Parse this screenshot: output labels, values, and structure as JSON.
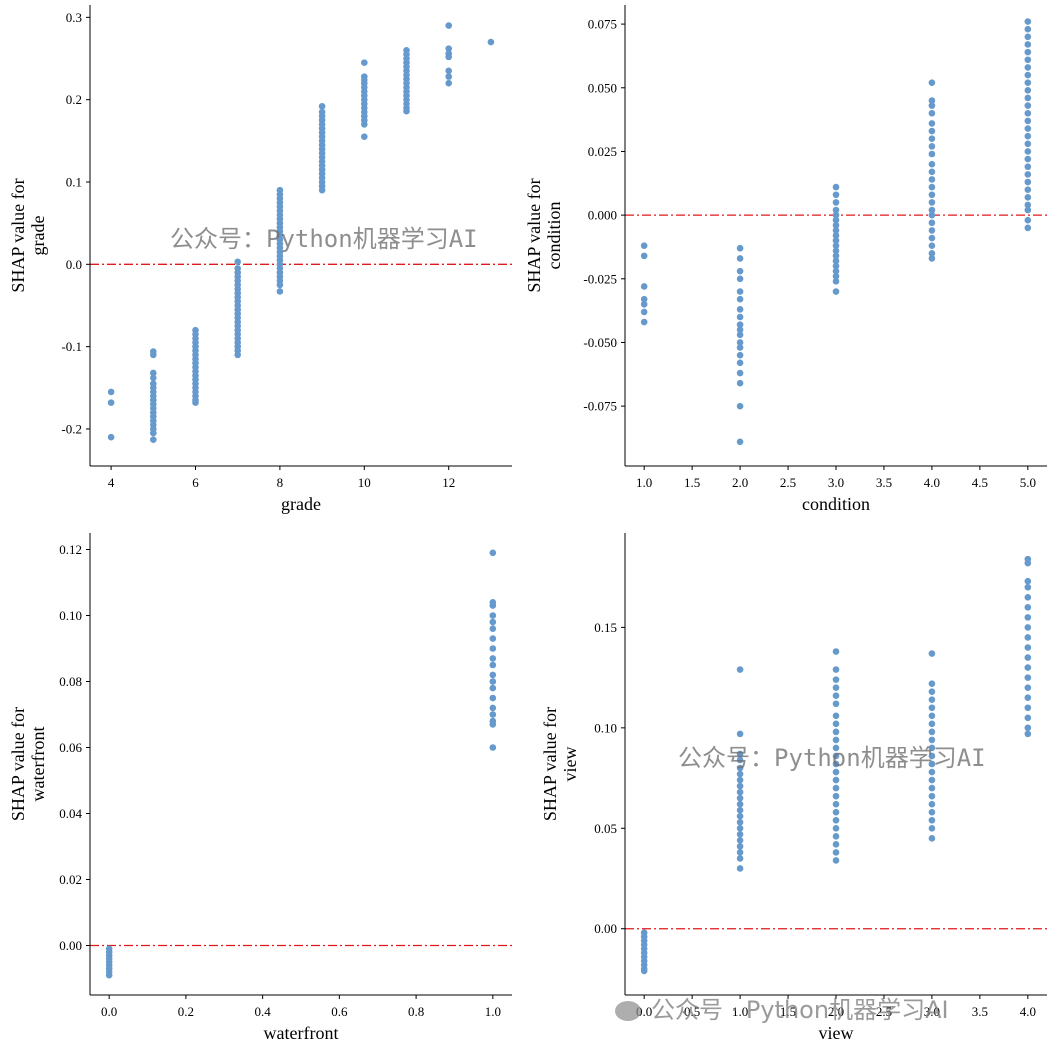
{
  "figure": {
    "watermark_text": "公众号：Python机器学习AI",
    "watermark_text_footer": "公众号 · Python机器学习AI"
  },
  "colors": {
    "point": "#6699CC",
    "zero_line": "#E0191C",
    "axis": "#000000"
  },
  "chart_data": [
    {
      "type": "scatter",
      "id": "grade",
      "xlabel": "grade",
      "ylabel_lines": [
        "SHAP value for",
        "grade"
      ],
      "xlim": [
        3.5,
        13.5
      ],
      "ylim": [
        -0.245,
        0.315
      ],
      "xticks": [
        4,
        6,
        8,
        10,
        12
      ],
      "xtick_labels": [
        "4",
        "6",
        "8",
        "10",
        "12"
      ],
      "yticks": [
        -0.2,
        -0.1,
        0.0,
        0.1,
        0.2,
        0.3
      ],
      "ytick_labels": [
        "-0.2",
        "-0.1",
        "0.0",
        "0.1",
        "0.2",
        "0.3"
      ],
      "zero_line": 0.0,
      "points": [
        {
          "x": 4,
          "ys": [
            -0.155,
            -0.168,
            -0.21
          ]
        },
        {
          "x": 5,
          "ys": [
            -0.106,
            -0.11,
            -0.132,
            -0.138,
            -0.145,
            -0.15,
            -0.155,
            -0.16,
            -0.165,
            -0.17,
            -0.175,
            -0.18,
            -0.185,
            -0.19,
            -0.195,
            -0.2,
            -0.205,
            -0.213
          ]
        },
        {
          "x": 6,
          "ys": [
            -0.08,
            -0.085,
            -0.09,
            -0.095,
            -0.1,
            -0.105,
            -0.11,
            -0.115,
            -0.12,
            -0.125,
            -0.13,
            -0.135,
            -0.14,
            -0.145,
            -0.15,
            -0.155,
            -0.16,
            -0.165,
            -0.168
          ]
        },
        {
          "x": 7,
          "ys": [
            0.003,
            -0.005,
            -0.01,
            -0.015,
            -0.02,
            -0.025,
            -0.03,
            -0.035,
            -0.04,
            -0.045,
            -0.05,
            -0.055,
            -0.06,
            -0.065,
            -0.07,
            -0.075,
            -0.08,
            -0.085,
            -0.09,
            -0.095,
            -0.1,
            -0.105,
            -0.11
          ]
        },
        {
          "x": 8,
          "ys": [
            0.09,
            0.085,
            0.08,
            0.075,
            0.07,
            0.065,
            0.06,
            0.055,
            0.05,
            0.045,
            0.04,
            0.035,
            0.03,
            0.025,
            0.02,
            0.015,
            0.01,
            0.005,
            0.0,
            -0.005,
            -0.01,
            -0.015,
            -0.02,
            -0.025,
            -0.033
          ]
        },
        {
          "x": 9,
          "ys": [
            0.192,
            0.185,
            0.18,
            0.175,
            0.17,
            0.165,
            0.16,
            0.155,
            0.15,
            0.145,
            0.14,
            0.135,
            0.13,
            0.125,
            0.12,
            0.115,
            0.11,
            0.105,
            0.1,
            0.095,
            0.09
          ]
        },
        {
          "x": 10,
          "ys": [
            0.245,
            0.228,
            0.224,
            0.22,
            0.215,
            0.21,
            0.205,
            0.2,
            0.195,
            0.19,
            0.185,
            0.18,
            0.175,
            0.17,
            0.155
          ]
        },
        {
          "x": 11,
          "ys": [
            0.26,
            0.255,
            0.25,
            0.245,
            0.24,
            0.235,
            0.23,
            0.225,
            0.22,
            0.215,
            0.21,
            0.205,
            0.2,
            0.195,
            0.19,
            0.186
          ]
        },
        {
          "x": 12,
          "ys": [
            0.29,
            0.262,
            0.256,
            0.252,
            0.235,
            0.228,
            0.22
          ]
        },
        {
          "x": 13,
          "ys": [
            0.27
          ]
        }
      ]
    },
    {
      "type": "scatter",
      "id": "condition",
      "xlabel": "condition",
      "ylabel_lines": [
        "SHAP value for",
        "condition"
      ],
      "xlim": [
        0.8,
        5.2
      ],
      "ylim": [
        -0.0985,
        0.0825
      ],
      "xticks": [
        1.0,
        1.5,
        2.0,
        2.5,
        3.0,
        3.5,
        4.0,
        4.5,
        5.0
      ],
      "xtick_labels": [
        "1.0",
        "1.5",
        "2.0",
        "2.5",
        "3.0",
        "3.5",
        "4.0",
        "4.5",
        "5.0"
      ],
      "yticks": [
        -0.075,
        -0.05,
        -0.025,
        0.0,
        0.025,
        0.05,
        0.075
      ],
      "ytick_labels": [
        "-0.075",
        "-0.050",
        "-0.025",
        "0.000",
        "0.025",
        "0.050",
        "0.075"
      ],
      "zero_line": 0.0,
      "points": [
        {
          "x": 1.0,
          "ys": [
            -0.012,
            -0.016,
            -0.028,
            -0.033,
            -0.035,
            -0.038,
            -0.042
          ]
        },
        {
          "x": 2.0,
          "ys": [
            -0.013,
            -0.017,
            -0.022,
            -0.025,
            -0.03,
            -0.033,
            -0.037,
            -0.04,
            -0.043,
            -0.045,
            -0.047,
            -0.05,
            -0.052,
            -0.055,
            -0.058,
            -0.062,
            -0.066,
            -0.075,
            -0.089
          ]
        },
        {
          "x": 3.0,
          "ys": [
            0.011,
            0.008,
            0.005,
            0.002,
            0.0,
            -0.002,
            -0.004,
            -0.006,
            -0.008,
            -0.01,
            -0.012,
            -0.014,
            -0.016,
            -0.018,
            -0.02,
            -0.022,
            -0.024,
            -0.026,
            -0.03
          ]
        },
        {
          "x": 4.0,
          "ys": [
            0.052,
            0.045,
            0.043,
            0.04,
            0.036,
            0.033,
            0.03,
            0.027,
            0.024,
            0.02,
            0.017,
            0.014,
            0.011,
            0.008,
            0.005,
            0.002,
            0.0,
            -0.003,
            -0.006,
            -0.009,
            -0.012,
            -0.015,
            -0.017
          ]
        },
        {
          "x": 5.0,
          "ys": [
            0.076,
            0.073,
            0.07,
            0.067,
            0.064,
            0.061,
            0.058,
            0.055,
            0.052,
            0.049,
            0.046,
            0.043,
            0.04,
            0.037,
            0.034,
            0.031,
            0.028,
            0.025,
            0.022,
            0.019,
            0.016,
            0.013,
            0.01,
            0.007,
            0.004,
            0.002,
            -0.002,
            -0.005
          ]
        }
      ]
    },
    {
      "type": "scatter",
      "id": "waterfront",
      "xlabel": "waterfront",
      "ylabel_lines": [
        "SHAP value for",
        "waterfront"
      ],
      "xlim": [
        -0.05,
        1.05
      ],
      "ylim": [
        -0.015,
        0.125
      ],
      "xticks": [
        0.0,
        0.2,
        0.4,
        0.6,
        0.8,
        1.0
      ],
      "xtick_labels": [
        "0.0",
        "0.2",
        "0.4",
        "0.6",
        "0.8",
        "1.0"
      ],
      "yticks": [
        0.0,
        0.02,
        0.04,
        0.06,
        0.08,
        0.1,
        0.12
      ],
      "ytick_labels": [
        "0.00",
        "0.02",
        "0.04",
        "0.06",
        "0.08",
        "0.10",
        "0.12"
      ],
      "zero_line": 0.0,
      "points": [
        {
          "x": 0.0,
          "ys": [
            -0.001,
            -0.002,
            -0.003,
            -0.004,
            -0.005,
            -0.006,
            -0.007,
            -0.008,
            -0.009
          ]
        },
        {
          "x": 1.0,
          "ys": [
            0.119,
            0.104,
            0.103,
            0.1,
            0.098,
            0.096,
            0.093,
            0.09,
            0.087,
            0.085,
            0.082,
            0.08,
            0.078,
            0.075,
            0.072,
            0.07,
            0.068,
            0.067,
            0.06
          ]
        }
      ]
    },
    {
      "type": "scatter",
      "id": "view",
      "xlabel": "view",
      "ylabel_lines": [
        "SHAP value for",
        "view"
      ],
      "xlim": [
        -0.2,
        4.2
      ],
      "ylim": [
        -0.033,
        0.197
      ],
      "xticks": [
        0.0,
        0.5,
        1.0,
        1.5,
        2.0,
        2.5,
        3.0,
        3.5,
        4.0
      ],
      "xtick_labels": [
        "0.0",
        "0.5",
        "1.0",
        "1.5",
        "2.0",
        "2.5",
        "3.0",
        "3.5",
        "4.0"
      ],
      "yticks": [
        0.0,
        0.05,
        0.1,
        0.15
      ],
      "ytick_labels": [
        "0.00",
        "0.05",
        "0.10",
        "0.15"
      ],
      "zero_line": 0.0,
      "points": [
        {
          "x": 0.0,
          "ys": [
            -0.002,
            -0.004,
            -0.006,
            -0.008,
            -0.01,
            -0.012,
            -0.014,
            -0.016,
            -0.018,
            -0.02,
            -0.021
          ]
        },
        {
          "x": 1.0,
          "ys": [
            0.129,
            0.097,
            0.087,
            0.084,
            0.08,
            0.077,
            0.074,
            0.071,
            0.068,
            0.065,
            0.062,
            0.059,
            0.056,
            0.053,
            0.05,
            0.047,
            0.044,
            0.041,
            0.038,
            0.035,
            0.03
          ]
        },
        {
          "x": 2.0,
          "ys": [
            0.138,
            0.129,
            0.124,
            0.12,
            0.116,
            0.112,
            0.106,
            0.102,
            0.098,
            0.094,
            0.09,
            0.086,
            0.082,
            0.078,
            0.074,
            0.07,
            0.066,
            0.062,
            0.058,
            0.054,
            0.05,
            0.046,
            0.042,
            0.038,
            0.034
          ]
        },
        {
          "x": 3.0,
          "ys": [
            0.137,
            0.122,
            0.118,
            0.114,
            0.11,
            0.106,
            0.102,
            0.098,
            0.094,
            0.09,
            0.086,
            0.082,
            0.078,
            0.074,
            0.07,
            0.066,
            0.062,
            0.058,
            0.054,
            0.05,
            0.045
          ]
        },
        {
          "x": 4.0,
          "ys": [
            0.184,
            0.182,
            0.173,
            0.17,
            0.165,
            0.16,
            0.155,
            0.15,
            0.145,
            0.14,
            0.135,
            0.13,
            0.125,
            0.12,
            0.115,
            0.11,
            0.105,
            0.1,
            0.097
          ]
        }
      ]
    }
  ]
}
